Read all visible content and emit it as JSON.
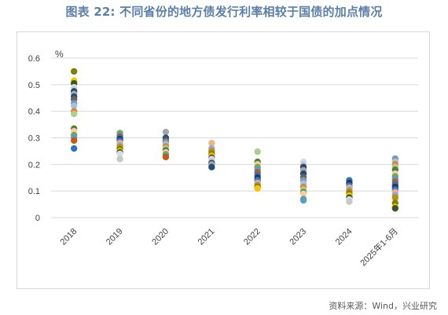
{
  "title": "图表 22: 不同省份的地方债发行利率相较于国债的加点情况",
  "source": "资料来源：Wind，兴业研究",
  "colors": {
    "title": "#5b7fa8",
    "grid": "#d9d9d9",
    "axis_text": "#404040",
    "palette": [
      "#7f7f00",
      "#264478",
      "#9dc3e6",
      "#70ad47",
      "#4472c4",
      "#ffc000",
      "#a5a5a5",
      "#ed7d31",
      "#5b9bd5",
      "#f4b183",
      "#375623",
      "#1f4e79",
      "#a9d18e",
      "#c55a11",
      "#8faadc",
      "#d6dce5",
      "#636363",
      "#548235",
      "#2e75b6",
      "#bf9000",
      "#c9c9c9",
      "#8497b0",
      "#f8cbad",
      "#203864"
    ]
  },
  "chart_data": {
    "type": "scatter",
    "title": "图表 22: 不同省份的地方债发行利率相较于国债的加点情况",
    "ylabel": "%",
    "ylim": [
      0,
      0.6
    ],
    "yticks": [
      "0",
      "0.1",
      "0.2",
      "0.3",
      "0.4",
      "0.5",
      "0.6"
    ],
    "ytick_values": [
      0,
      0.1,
      0.2,
      0.3,
      0.4,
      0.5,
      0.6
    ],
    "categories": [
      "2018",
      "2019",
      "2020",
      "2021",
      "2022",
      "2023",
      "2024",
      "2025年1-6月"
    ],
    "grid": "horizontal",
    "legend": "none",
    "values": [
      [
        0.55,
        0.515,
        0.505,
        0.49,
        0.48,
        0.475,
        0.465,
        0.455,
        0.445,
        0.43,
        0.42,
        0.4,
        0.39,
        0.335,
        0.325,
        0.31,
        0.3,
        0.29,
        0.26
      ],
      [
        0.318,
        0.31,
        0.305,
        0.3,
        0.295,
        0.288,
        0.28,
        0.272,
        0.265,
        0.258,
        0.25,
        0.245,
        0.24,
        0.22
      ],
      [
        0.322,
        0.3,
        0.29,
        0.283,
        0.275,
        0.268,
        0.26,
        0.253,
        0.245,
        0.238,
        0.232,
        0.228
      ],
      [
        0.28,
        0.26,
        0.25,
        0.24,
        0.232,
        0.225,
        0.22,
        0.212,
        0.205,
        0.2,
        0.19
      ],
      [
        0.248,
        0.21,
        0.2,
        0.19,
        0.18,
        0.17,
        0.16,
        0.15,
        0.14,
        0.13,
        0.125,
        0.12,
        0.115,
        0.11
      ],
      [
        0.21,
        0.2,
        0.19,
        0.178,
        0.165,
        0.152,
        0.14,
        0.128,
        0.115,
        0.105,
        0.095,
        0.09,
        0.07,
        0.065
      ],
      [
        0.14,
        0.13,
        0.12,
        0.112,
        0.105,
        0.098,
        0.09,
        0.083,
        0.075,
        0.068,
        0.06
      ],
      [
        0.222,
        0.21,
        0.2,
        0.19,
        0.18,
        0.165,
        0.155,
        0.145,
        0.135,
        0.125,
        0.115,
        0.105,
        0.095,
        0.085,
        0.075,
        0.055,
        0.04,
        0.035
      ]
    ]
  }
}
